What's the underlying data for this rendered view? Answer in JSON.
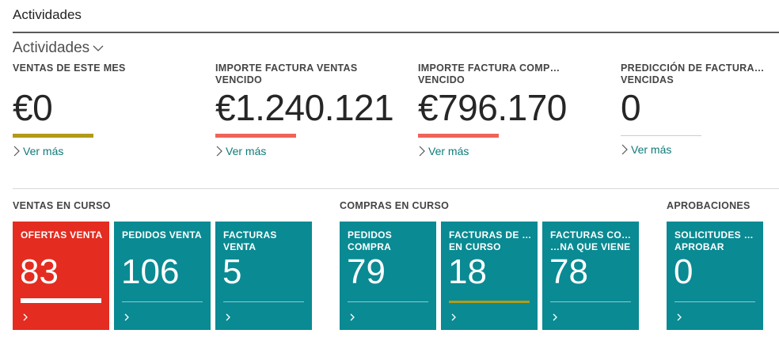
{
  "page": {
    "title": "Actividades"
  },
  "section": {
    "title": "Actividades"
  },
  "kpis": [
    {
      "label": "VENTAS DE ESTE MES",
      "value": "€0",
      "bar_color": "#b39a18",
      "link": "Ver más"
    },
    {
      "label": "IMPORTE FACTURA VENTAS VENCIDO",
      "value": "€1.240.121",
      "bar_color": "#ee6459",
      "link": "Ver más"
    },
    {
      "label": "IMPORTE FACTURA COMP… VENCIDO",
      "value": "€796.170",
      "bar_color": "#ee6459",
      "link": "Ver más"
    },
    {
      "label": "PREDICCIÓN DE FACTURA… VENCIDAS",
      "value": "0",
      "bar_color": "#cccccc",
      "link": "Ver más"
    }
  ],
  "groups": {
    "ventas": "VENTAS EN CURSO",
    "compras": "COMPRAS EN CURSO",
    "aprobaciones": "APROBACIONES"
  },
  "tiles": [
    {
      "label": "OFERTAS VENTA",
      "value": "83",
      "color": "#e42c20"
    },
    {
      "label": "PEDIDOS VENTA",
      "value": "106",
      "color": "#0a8a93"
    },
    {
      "label": "FACTURAS VENTA",
      "value": "5",
      "color": "#0a8a93"
    },
    {
      "label": "PEDIDOS COMPRA",
      "value": "79",
      "color": "#0a8a93"
    },
    {
      "label": "FACTURAS DE … EN CURSO",
      "value": "18",
      "color": "#0a8a93"
    },
    {
      "label": "FACTURAS CO… …NA QUE VIENE",
      "value": "78",
      "color": "#0a8a93"
    },
    {
      "label": "SOLICITUDES … APROBAR",
      "value": "0",
      "color": "#0a8a93"
    }
  ]
}
